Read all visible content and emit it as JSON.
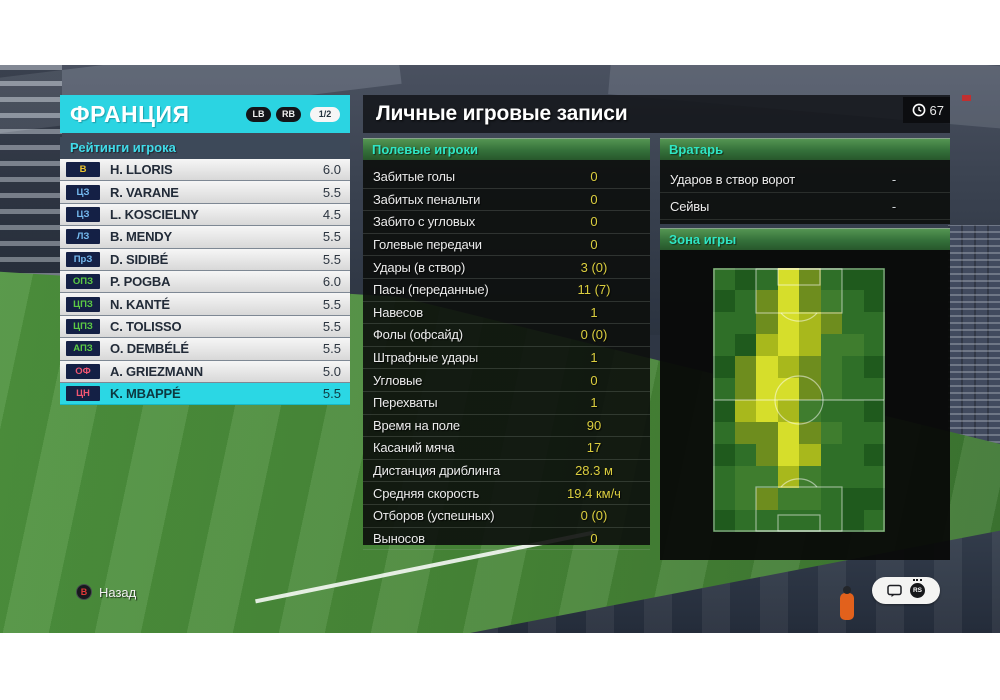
{
  "header": {
    "team_name": "ФРАНЦИЯ",
    "shoulder_buttons": [
      "LB",
      "RB"
    ],
    "page_indicator": "1/2",
    "clock_value": "67",
    "title": "Личные игровые записи"
  },
  "ratings_panel": {
    "title": "Рейтинги игрока",
    "players": [
      {
        "position": "В",
        "role": "gk",
        "name": "H. LLORIS",
        "rating": "6.0",
        "selected": false
      },
      {
        "position": "ЦЗ",
        "role": "def",
        "name": "R. VARANE",
        "rating": "5.5",
        "selected": false
      },
      {
        "position": "ЦЗ",
        "role": "def",
        "name": "L. KOSCIELNY",
        "rating": "4.5",
        "selected": false
      },
      {
        "position": "ЛЗ",
        "role": "def",
        "name": "B. MENDY",
        "rating": "5.5",
        "selected": false
      },
      {
        "position": "ПрЗ",
        "role": "def",
        "name": "D. SIDIBÉ",
        "rating": "5.5",
        "selected": false
      },
      {
        "position": "ОПЗ",
        "role": "mid",
        "name": "P. POGBA",
        "rating": "6.0",
        "selected": false
      },
      {
        "position": "ЦПЗ",
        "role": "mid",
        "name": "N. KANTÉ",
        "rating": "5.5",
        "selected": false
      },
      {
        "position": "ЦПЗ",
        "role": "mid",
        "name": "C. TOLISSO",
        "rating": "5.5",
        "selected": false
      },
      {
        "position": "АПЗ",
        "role": "mid",
        "name": "O. DEMBÉLÉ",
        "rating": "5.5",
        "selected": false
      },
      {
        "position": "ОФ",
        "role": "fwd",
        "name": "A. GRIEZMANN",
        "rating": "5.0",
        "selected": false
      },
      {
        "position": "ЦН",
        "role": "fwd",
        "name": "K. MBAPPÉ",
        "rating": "5.5",
        "selected": true
      }
    ]
  },
  "field_players_panel": {
    "title": "Полевые игроки",
    "stats": [
      {
        "label": "Забитые голы",
        "value": "0"
      },
      {
        "label": "Забитых пенальти",
        "value": "0"
      },
      {
        "label": "Забито с угловых",
        "value": "0"
      },
      {
        "label": "Голевые передачи",
        "value": "0"
      },
      {
        "label": "Удары (в створ)",
        "value": "3 (0)"
      },
      {
        "label": "Пасы (переданные)",
        "value": "11 (7)"
      },
      {
        "label": "Навесов",
        "value": "1"
      },
      {
        "label": "Фолы (офсайд)",
        "value": "0 (0)"
      },
      {
        "label": "Штрафные удары",
        "value": "1"
      },
      {
        "label": "Угловые",
        "value": "0"
      },
      {
        "label": "Перехваты",
        "value": "1"
      },
      {
        "label": "Время на поле",
        "value": "90"
      },
      {
        "label": "Касаний мяча",
        "value": "17"
      },
      {
        "label": "Дистанция дриблинга",
        "value": "28.3 м"
      },
      {
        "label": "Средняя скорость",
        "value": "19.4 км/ч"
      },
      {
        "label": "Отборов (успешных)",
        "value": "0 (0)"
      },
      {
        "label": "Выносов",
        "value": "0"
      }
    ]
  },
  "goalkeeper_panel": {
    "title": "Вратарь",
    "stats": [
      {
        "label": "Ударов в створ ворот",
        "value": "-"
      },
      {
        "label": "Сейвы",
        "value": "-"
      }
    ]
  },
  "zone_panel": {
    "title": "Зона игры",
    "heatmap": {
      "palette": [
        "#1f5a1d",
        "#2f6f28",
        "#3f7d2e",
        "#6e8d1e",
        "#a8b81c",
        "#d6de2b"
      ],
      "grid": [
        [
          1,
          0,
          1,
          5,
          3,
          1,
          0,
          0
        ],
        [
          0,
          1,
          3,
          5,
          3,
          2,
          1,
          0
        ],
        [
          1,
          1,
          3,
          5,
          4,
          3,
          1,
          1
        ],
        [
          1,
          0,
          4,
          5,
          4,
          2,
          2,
          1
        ],
        [
          0,
          3,
          5,
          4,
          3,
          2,
          1,
          0
        ],
        [
          1,
          3,
          5,
          5,
          3,
          2,
          1,
          1
        ],
        [
          0,
          4,
          5,
          4,
          2,
          1,
          1,
          0
        ],
        [
          1,
          3,
          3,
          5,
          3,
          2,
          1,
          1
        ],
        [
          0,
          1,
          3,
          5,
          4,
          1,
          1,
          0
        ],
        [
          1,
          2,
          2,
          4,
          2,
          1,
          1,
          1
        ],
        [
          1,
          2,
          3,
          2,
          2,
          1,
          0,
          0
        ],
        [
          0,
          1,
          1,
          1,
          1,
          1,
          0,
          1
        ]
      ]
    }
  },
  "footer": {
    "back_button_glyph": "B",
    "back_label": "Назад",
    "rs_label": "RS"
  }
}
